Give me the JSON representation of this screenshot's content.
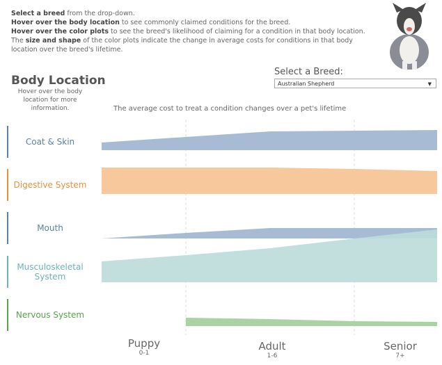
{
  "intro": [
    {
      "bold": "Select a breed",
      "rest": " from the drop-down."
    },
    {
      "bold": "Hover over the body location",
      "rest": " to see commonly claimed conditions for the breed."
    },
    {
      "bold": "Hover over the color plots",
      "rest": " to see the breed's likelihood of claiming for a condition in that body location."
    },
    {
      "pre": "The ",
      "bold": "size and shape",
      "rest": " of the color plots indicate the change in average costs for conditions in that body location over the breed's lifetime."
    }
  ],
  "title": "Body Location",
  "subtitle": "Hover over the body location for more information.",
  "breed_label": "Select a Breed:",
  "breed_value": "Australian Shepherd",
  "chart_data": {
    "type": "area",
    "title": "The average cost to treat a condition changes over a pet's lifetime",
    "x_positions": [
      "start",
      "Puppy end",
      "Adult mid",
      "Senior start",
      "end"
    ],
    "age_groups": [
      {
        "name": "Puppy",
        "range": "0-1"
      },
      {
        "name": "Adult",
        "range": "1-6"
      },
      {
        "name": "Senior",
        "range": "7+"
      }
    ],
    "series": [
      {
        "name": "Coat & Skin",
        "color": "#a7bcd4",
        "values": [
          11,
          19,
          27,
          28,
          29
        ]
      },
      {
        "name": "Digestive System",
        "color": "#f7c89b",
        "values": [
          38,
          38,
          38,
          36,
          33
        ]
      },
      {
        "name": "Mouth",
        "color": "#a7bcd4",
        "values": [
          0,
          8,
          15,
          15,
          15
        ]
      },
      {
        "name": "Musculoskeletal System",
        "color": "#bcdcd9",
        "values": [
          30,
          39,
          49,
          63,
          76
        ]
      },
      {
        "name": "Nervous System",
        "color": "#a9d3a2",
        "values": [
          null,
          12,
          10,
          7,
          6
        ]
      }
    ],
    "label_colors": [
      "#5b81a6",
      "#e8903a",
      "#5b81a6",
      "#6db3b3",
      "#5aa04f"
    ]
  }
}
